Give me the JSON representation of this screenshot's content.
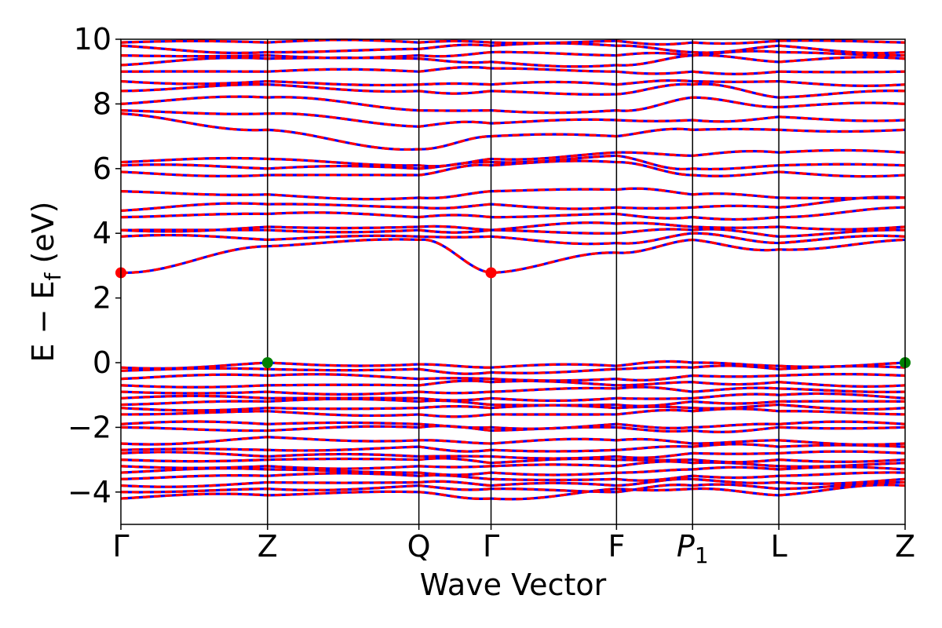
{
  "chart_data": {
    "type": "line",
    "title": "",
    "xlabel": "Wave Vector",
    "ylabel": "E − E_f (eV)",
    "ylabel_parts": {
      "main": "E − E",
      "sub": "f",
      "unit": " (eV)"
    },
    "ylim": [
      -5,
      10
    ],
    "yticks": [
      -4,
      -2,
      0,
      2,
      4,
      6,
      8,
      10
    ],
    "ytick_labels": [
      "−4",
      "−2",
      "0",
      "2",
      "4",
      "6",
      "8",
      "10"
    ],
    "xlim": [
      0,
      1
    ],
    "kpoints": [
      {
        "label": "Γ",
        "x": 0.0
      },
      {
        "label": "Z",
        "x": 0.187
      },
      {
        "label": "Q",
        "x": 0.38
      },
      {
        "label": "Γ",
        "x": 0.472
      },
      {
        "label": "F",
        "x": 0.632
      },
      {
        "label": "P",
        "sub": "1",
        "x": 0.729
      },
      {
        "label": "L",
        "x": 0.839
      },
      {
        "label": "Z",
        "x": 1.0
      }
    ],
    "grid": false,
    "series_colors": {
      "spin_up": "#0000ff",
      "spin_down": "#ff0000"
    },
    "band_edge_markers": [
      {
        "kind": "cbm",
        "x": 0.0,
        "y": 2.78,
        "color": "#ff0000"
      },
      {
        "kind": "cbm",
        "x": 0.472,
        "y": 2.78,
        "color": "#ff0000"
      },
      {
        "kind": "vbm",
        "x": 0.187,
        "y": 0.0,
        "color": "#008000"
      },
      {
        "kind": "vbm",
        "x": 1.0,
        "y": 0.0,
        "color": "#008000"
      }
    ],
    "bands": [
      [
        -4.2,
        -4.1,
        -4.0,
        -4.2,
        -3.9,
        -3.9,
        -4.1,
        -3.8
      ],
      [
        -4.0,
        -3.9,
        -3.8,
        -3.9,
        -4.0,
        -3.8,
        -3.9,
        -3.7
      ],
      [
        -3.8,
        -3.7,
        -3.7,
        -3.8,
        -3.8,
        -3.6,
        -3.7,
        -3.6
      ],
      [
        -3.6,
        -3.5,
        -3.5,
        -3.6,
        -3.6,
        -3.5,
        -3.5,
        -3.4
      ],
      [
        -3.4,
        -3.3,
        -3.4,
        -3.4,
        -3.4,
        -3.3,
        -3.3,
        -3.3
      ],
      [
        -3.2,
        -3.2,
        -3.2,
        -3.2,
        -3.2,
        -3.1,
        -3.2,
        -3.1
      ],
      [
        -3.0,
        -3.0,
        -3.0,
        -3.1,
        -3.0,
        -3.0,
        -3.0,
        -3.0
      ],
      [
        -2.8,
        -2.9,
        -2.9,
        -2.9,
        -2.9,
        -2.8,
        -2.8,
        -2.8
      ],
      [
        -2.7,
        -2.7,
        -2.6,
        -2.7,
        -2.7,
        -2.6,
        -2.6,
        -2.6
      ],
      [
        -2.5,
        -2.3,
        -2.4,
        -2.5,
        -2.4,
        -2.5,
        -2.4,
        -2.5
      ],
      [
        -2.0,
        -2.1,
        -2.0,
        -2.1,
        -2.0,
        -2.1,
        -2.0,
        -2.0
      ],
      [
        -1.9,
        -1.9,
        -1.9,
        -2.0,
        -1.9,
        -2.0,
        -1.9,
        -1.9
      ],
      [
        -1.6,
        -1.5,
        -1.6,
        -1.6,
        -1.6,
        -1.5,
        -1.5,
        -1.6
      ],
      [
        -1.4,
        -1.4,
        -1.4,
        -1.4,
        -1.4,
        -1.4,
        -1.3,
        -1.4
      ],
      [
        -1.3,
        -1.2,
        -1.2,
        -1.3,
        -1.3,
        -1.2,
        -1.2,
        -1.2
      ],
      [
        -1.1,
        -1.1,
        -1.1,
        -1.1,
        -1.1,
        -1.1,
        -1.0,
        -1.1
      ],
      [
        -0.9,
        -0.9,
        -0.9,
        -0.9,
        -0.8,
        -0.9,
        -0.8,
        -0.9
      ],
      [
        -0.7,
        -0.7,
        -0.7,
        -0.6,
        -0.7,
        -0.6,
        -0.6,
        -0.7
      ],
      [
        -0.5,
        -0.4,
        -0.5,
        -0.5,
        -0.5,
        -0.4,
        -0.4,
        -0.4
      ],
      [
        -0.25,
        -0.2,
        -0.2,
        -0.3,
        -0.2,
        -0.15,
        -0.2,
        -0.15
      ],
      [
        -0.15,
        0.0,
        -0.05,
        -0.15,
        -0.1,
        0.0,
        -0.1,
        0.0
      ],
      [
        2.78,
        3.6,
        3.8,
        2.78,
        3.4,
        3.8,
        3.5,
        3.8
      ],
      [
        3.9,
        3.8,
        3.9,
        3.9,
        3.7,
        4.0,
        3.7,
        3.9
      ],
      [
        4.1,
        4.1,
        4.1,
        4.1,
        4.0,
        4.1,
        3.9,
        4.1
      ],
      [
        4.1,
        4.2,
        4.2,
        4.1,
        4.3,
        4.2,
        4.2,
        4.2
      ],
      [
        4.5,
        4.6,
        4.5,
        4.5,
        4.6,
        4.5,
        4.5,
        4.8
      ],
      [
        4.7,
        4.9,
        4.8,
        4.9,
        4.8,
        4.8,
        4.8,
        5.1
      ],
      [
        5.3,
        5.2,
        5.1,
        5.3,
        5.35,
        5.2,
        5.1,
        5.1
      ],
      [
        5.9,
        5.8,
        5.8,
        6.1,
        6.2,
        5.8,
        5.9,
        5.8
      ],
      [
        6.1,
        6.0,
        6.0,
        6.2,
        6.4,
        6.0,
        6.1,
        6.1
      ],
      [
        6.2,
        6.3,
        6.1,
        6.3,
        6.5,
        6.4,
        6.5,
        6.5
      ],
      [
        7.7,
        7.2,
        6.6,
        7.0,
        7.0,
        7.2,
        7.2,
        7.2
      ],
      [
        7.8,
        7.7,
        7.3,
        7.4,
        7.5,
        7.5,
        7.6,
        7.5
      ],
      [
        8.0,
        8.2,
        7.8,
        7.8,
        7.8,
        8.2,
        7.9,
        8.0
      ],
      [
        8.4,
        8.6,
        8.4,
        8.4,
        8.3,
        8.6,
        8.2,
        8.4
      ],
      [
        8.7,
        8.7,
        8.6,
        8.6,
        8.6,
        8.7,
        8.7,
        8.6
      ],
      [
        9.0,
        9.0,
        9.0,
        9.1,
        9.0,
        9.0,
        9.0,
        9.0
      ],
      [
        9.2,
        9.4,
        9.4,
        9.3,
        9.2,
        9.5,
        9.3,
        9.4
      ],
      [
        9.5,
        9.5,
        9.5,
        9.6,
        9.5,
        9.5,
        9.6,
        9.5
      ],
      [
        9.8,
        9.6,
        9.7,
        9.8,
        9.8,
        9.6,
        9.8,
        9.6
      ],
      [
        9.9,
        9.9,
        9.9,
        9.9,
        9.95,
        9.9,
        9.95,
        9.9
      ]
    ]
  }
}
